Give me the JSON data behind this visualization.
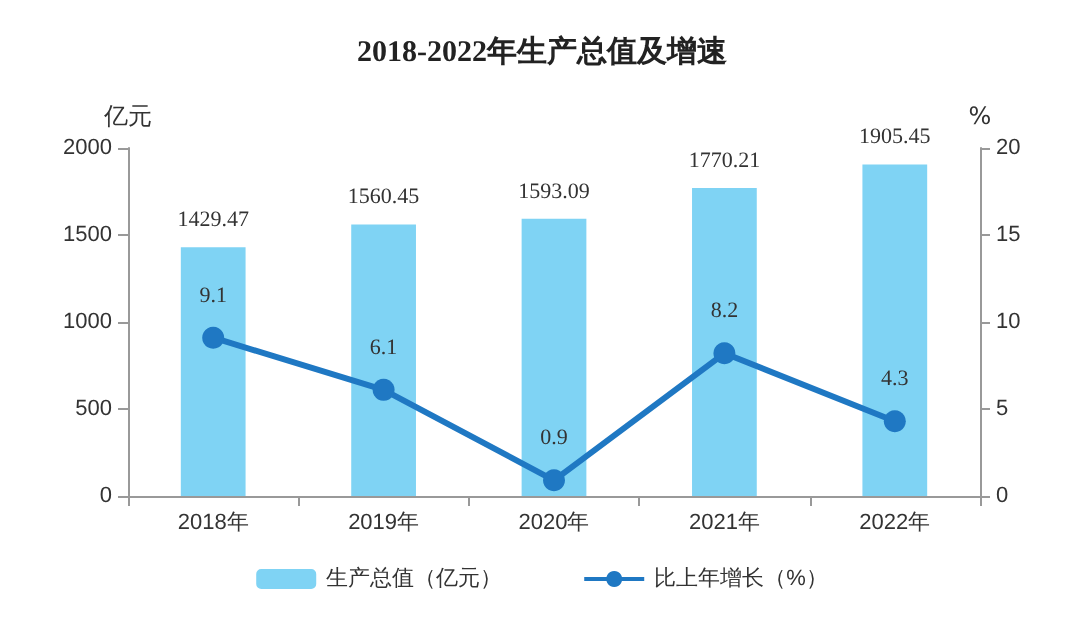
{
  "chart_data": {
    "type": "bar",
    "title": "2018-2022年生产总值及增速",
    "ylabel": "亿元",
    "y2label": "%",
    "categories": [
      "2018年",
      "2019年",
      "2020年",
      "2021年",
      "2022年"
    ],
    "series": [
      {
        "name": "生产总值（亿元）",
        "color": "#7fd3f4",
        "values": [
          1429.47,
          1560.45,
          1593.09,
          1770.21,
          1905.45
        ]
      },
      {
        "name": "比上年增长（%）",
        "type": "line",
        "axis": "y2",
        "color": "#1f78c3",
        "values": [
          9.1,
          6.1,
          0.9,
          8.2,
          4.3
        ]
      }
    ],
    "ylim": [
      0,
      2000
    ],
    "yticks": [
      0,
      500,
      1000,
      1500,
      2000
    ],
    "y2lim": [
      0,
      20
    ],
    "y2ticks": [
      0,
      5,
      10,
      15,
      20
    ],
    "data_labels": true,
    "legend": "bottom",
    "grid": false,
    "marker": "circle",
    "line_style": "solid"
  }
}
